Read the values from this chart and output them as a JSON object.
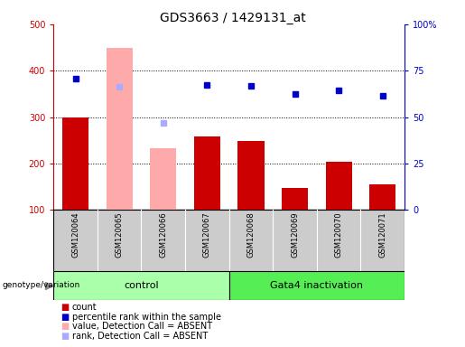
{
  "title": "GDS3663 / 1429131_at",
  "samples": [
    "GSM120064",
    "GSM120065",
    "GSM120066",
    "GSM120067",
    "GSM120068",
    "GSM120069",
    "GSM120070",
    "GSM120071"
  ],
  "count_values": [
    300,
    null,
    null,
    258,
    249,
    148,
    203,
    156
  ],
  "count_absent_values": [
    null,
    449,
    233,
    null,
    null,
    null,
    null,
    null
  ],
  "percentile_values": [
    383,
    null,
    null,
    370,
    367,
    350,
    358,
    346
  ],
  "percentile_absent_values": [
    null,
    365,
    287,
    null,
    null,
    null,
    null,
    null
  ],
  "ylim_left": [
    100,
    500
  ],
  "ylim_right": [
    0,
    100
  ],
  "left_ticks": [
    100,
    200,
    300,
    400,
    500
  ],
  "right_ticks": [
    0,
    25,
    50,
    75,
    100
  ],
  "right_tick_labels": [
    "0",
    "25",
    "50",
    "75",
    "100%"
  ],
  "grid_values": [
    200,
    300,
    400
  ],
  "count_color": "#cc0000",
  "count_absent_color": "#ffaaaa",
  "percentile_color": "#0000cc",
  "percentile_absent_color": "#aaaaff",
  "bar_width": 0.6,
  "legend_items": [
    {
      "label": "count",
      "color": "#cc0000"
    },
    {
      "label": "percentile rank within the sample",
      "color": "#0000cc"
    },
    {
      "label": "value, Detection Call = ABSENT",
      "color": "#ffaaaa"
    },
    {
      "label": "rank, Detection Call = ABSENT",
      "color": "#aaaaff"
    }
  ],
  "title_fontsize": 10,
  "tick_fontsize": 7,
  "sample_fontsize": 6,
  "group_label_fontsize": 8,
  "legend_fontsize": 7,
  "genotype_label": "genotype/variation",
  "sample_box_bg": "#cccccc",
  "group_control_color": "#aaffaa",
  "group_gata4_color": "#55ee55"
}
